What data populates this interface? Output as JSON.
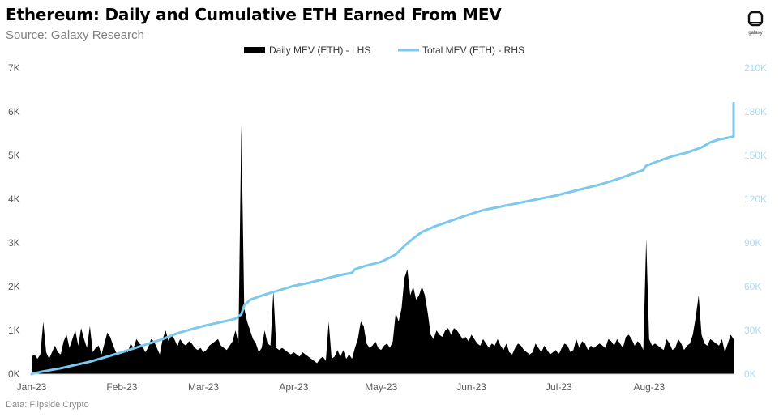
{
  "title": "Ethereum: Daily and Cumulative ETH Earned From MEV",
  "subtitle": "Source: Galaxy Research",
  "footnote": "Data: Flipside Crypto",
  "logo_text": "galaxy",
  "colors": {
    "daily": "#000000",
    "total": "#7cc8ee",
    "left_axis_text": "#595959",
    "right_axis_text": "#a9dcf5"
  },
  "chart_data": {
    "type": "area+line",
    "title": "Ethereum: Daily and Cumulative ETH Earned From MEV",
    "x_labels": [
      "Jan-23",
      "Feb-23",
      "Mar-23",
      "Apr-23",
      "May-23",
      "Jun-23",
      "Jul-23",
      "Aug-23"
    ],
    "x_label_days": [
      0,
      31,
      59,
      90,
      120,
      151,
      181,
      212
    ],
    "total_days": 241,
    "left_axis": {
      "ylim": [
        0,
        7000
      ],
      "ticks": [
        "0K",
        "1K",
        "2K",
        "3K",
        "4K",
        "5K",
        "6K",
        "7K"
      ]
    },
    "right_axis": {
      "ylim": [
        0,
        210000
      ],
      "ticks": [
        "0K",
        "30K",
        "60K",
        "90K",
        "120K",
        "150K",
        "180K",
        "210K"
      ]
    },
    "series": [
      {
        "name": "Daily MEV (ETH) - LHS",
        "type": "area",
        "axis": "left",
        "points": [
          [
            0,
            400
          ],
          [
            1,
            450
          ],
          [
            2,
            350
          ],
          [
            3,
            450
          ],
          [
            4,
            1200
          ],
          [
            5,
            500
          ],
          [
            6,
            350
          ],
          [
            7,
            500
          ],
          [
            8,
            650
          ],
          [
            9,
            500
          ],
          [
            10,
            450
          ],
          [
            11,
            750
          ],
          [
            12,
            900
          ],
          [
            13,
            600
          ],
          [
            14,
            800
          ],
          [
            15,
            1000
          ],
          [
            16,
            650
          ],
          [
            17,
            1050
          ],
          [
            18,
            800
          ],
          [
            19,
            600
          ],
          [
            20,
            1100
          ],
          [
            21,
            500
          ],
          [
            22,
            600
          ],
          [
            23,
            650
          ],
          [
            24,
            450
          ],
          [
            25,
            700
          ],
          [
            26,
            950
          ],
          [
            27,
            850
          ],
          [
            28,
            650
          ],
          [
            29,
            500
          ],
          [
            30,
            450
          ],
          [
            31,
            500
          ],
          [
            32,
            550
          ],
          [
            33,
            500
          ],
          [
            34,
            700
          ],
          [
            35,
            600
          ],
          [
            36,
            800
          ],
          [
            37,
            700
          ],
          [
            38,
            650
          ],
          [
            39,
            500
          ],
          [
            40,
            600
          ],
          [
            41,
            800
          ],
          [
            42,
            750
          ],
          [
            43,
            600
          ],
          [
            44,
            450
          ],
          [
            45,
            800
          ],
          [
            46,
            1000
          ],
          [
            47,
            750
          ],
          [
            48,
            900
          ],
          [
            49,
            800
          ],
          [
            50,
            650
          ],
          [
            51,
            800
          ],
          [
            52,
            700
          ],
          [
            53,
            650
          ],
          [
            54,
            750
          ],
          [
            55,
            700
          ],
          [
            56,
            600
          ],
          [
            57,
            550
          ],
          [
            58,
            600
          ],
          [
            59,
            500
          ],
          [
            60,
            550
          ],
          [
            61,
            650
          ],
          [
            62,
            700
          ],
          [
            63,
            750
          ],
          [
            64,
            800
          ],
          [
            65,
            650
          ],
          [
            66,
            600
          ],
          [
            67,
            550
          ],
          [
            68,
            650
          ],
          [
            69,
            750
          ],
          [
            70,
            1000
          ],
          [
            71,
            700
          ],
          [
            72,
            5700
          ],
          [
            73,
            1500
          ],
          [
            74,
            1200
          ],
          [
            75,
            1000
          ],
          [
            76,
            800
          ],
          [
            77,
            700
          ],
          [
            78,
            500
          ],
          [
            79,
            600
          ],
          [
            80,
            1000
          ],
          [
            81,
            700
          ],
          [
            82,
            650
          ],
          [
            83,
            1900
          ],
          [
            84,
            600
          ],
          [
            85,
            550
          ],
          [
            86,
            600
          ],
          [
            87,
            550
          ],
          [
            88,
            500
          ],
          [
            89,
            450
          ],
          [
            90,
            500
          ],
          [
            91,
            450
          ],
          [
            92,
            400
          ],
          [
            93,
            500
          ],
          [
            94,
            450
          ],
          [
            95,
            400
          ],
          [
            96,
            350
          ],
          [
            97,
            300
          ],
          [
            98,
            250
          ],
          [
            99,
            350
          ],
          [
            100,
            400
          ],
          [
            101,
            300
          ],
          [
            102,
            1200
          ],
          [
            103,
            350
          ],
          [
            104,
            400
          ],
          [
            105,
            550
          ],
          [
            106,
            400
          ],
          [
            107,
            550
          ],
          [
            108,
            350
          ],
          [
            109,
            450
          ],
          [
            110,
            350
          ],
          [
            111,
            600
          ],
          [
            112,
            800
          ],
          [
            113,
            1200
          ],
          [
            114,
            1100
          ],
          [
            115,
            700
          ],
          [
            116,
            600
          ],
          [
            117,
            650
          ],
          [
            118,
            750
          ],
          [
            119,
            600
          ],
          [
            120,
            550
          ],
          [
            121,
            650
          ],
          [
            122,
            700
          ],
          [
            123,
            600
          ],
          [
            124,
            750
          ],
          [
            125,
            1400
          ],
          [
            126,
            1200
          ],
          [
            127,
            1500
          ],
          [
            128,
            2200
          ],
          [
            129,
            2400
          ],
          [
            130,
            1800
          ],
          [
            131,
            2000
          ],
          [
            132,
            1700
          ],
          [
            133,
            1800
          ],
          [
            134,
            2000
          ],
          [
            135,
            1800
          ],
          [
            136,
            1400
          ],
          [
            137,
            900
          ],
          [
            138,
            800
          ],
          [
            139,
            1000
          ],
          [
            140,
            900
          ],
          [
            141,
            850
          ],
          [
            142,
            1000
          ],
          [
            143,
            1050
          ],
          [
            144,
            900
          ],
          [
            145,
            1050
          ],
          [
            146,
            1000
          ],
          [
            147,
            900
          ],
          [
            148,
            800
          ],
          [
            149,
            850
          ],
          [
            150,
            750
          ],
          [
            151,
            900
          ],
          [
            152,
            800
          ],
          [
            153,
            700
          ],
          [
            154,
            650
          ],
          [
            155,
            800
          ],
          [
            156,
            700
          ],
          [
            157,
            600
          ],
          [
            158,
            700
          ],
          [
            159,
            650
          ],
          [
            160,
            800
          ],
          [
            161,
            650
          ],
          [
            162,
            550
          ],
          [
            163,
            700
          ],
          [
            164,
            500
          ],
          [
            165,
            450
          ],
          [
            166,
            600
          ],
          [
            167,
            700
          ],
          [
            168,
            650
          ],
          [
            169,
            550
          ],
          [
            170,
            500
          ],
          [
            171,
            450
          ],
          [
            172,
            500
          ],
          [
            173,
            700
          ],
          [
            174,
            600
          ],
          [
            175,
            500
          ],
          [
            176,
            650
          ],
          [
            177,
            550
          ],
          [
            178,
            450
          ],
          [
            179,
            500
          ],
          [
            180,
            550
          ],
          [
            181,
            450
          ],
          [
            182,
            600
          ],
          [
            183,
            700
          ],
          [
            184,
            650
          ],
          [
            185,
            500
          ],
          [
            186,
            550
          ],
          [
            187,
            800
          ],
          [
            188,
            600
          ],
          [
            189,
            750
          ],
          [
            190,
            700
          ],
          [
            191,
            550
          ],
          [
            192,
            650
          ],
          [
            193,
            600
          ],
          [
            194,
            650
          ],
          [
            195,
            700
          ],
          [
            196,
            650
          ],
          [
            197,
            600
          ],
          [
            198,
            800
          ],
          [
            199,
            750
          ],
          [
            200,
            650
          ],
          [
            201,
            800
          ],
          [
            202,
            700
          ],
          [
            203,
            600
          ],
          [
            204,
            850
          ],
          [
            205,
            900
          ],
          [
            206,
            800
          ],
          [
            207,
            650
          ],
          [
            208,
            750
          ],
          [
            209,
            700
          ],
          [
            210,
            550
          ],
          [
            211,
            3100
          ],
          [
            212,
            800
          ],
          [
            213,
            650
          ],
          [
            214,
            700
          ],
          [
            215,
            650
          ],
          [
            216,
            600
          ],
          [
            217,
            550
          ],
          [
            218,
            800
          ],
          [
            219,
            700
          ],
          [
            220,
            550
          ],
          [
            221,
            600
          ],
          [
            222,
            800
          ],
          [
            223,
            700
          ],
          [
            224,
            550
          ],
          [
            225,
            650
          ],
          [
            226,
            700
          ],
          [
            227,
            900
          ],
          [
            228,
            1300
          ],
          [
            229,
            1800
          ],
          [
            230,
            900
          ],
          [
            231,
            700
          ],
          [
            232,
            650
          ],
          [
            233,
            800
          ],
          [
            234,
            750
          ],
          [
            235,
            700
          ],
          [
            236,
            650
          ],
          [
            237,
            800
          ],
          [
            238,
            500
          ],
          [
            239,
            700
          ],
          [
            240,
            900
          ],
          [
            241,
            800
          ]
        ]
      },
      {
        "name": "Total MEV (ETH) - RHS",
        "type": "line",
        "axis": "right",
        "points": [
          [
            0,
            0
          ],
          [
            3,
            1500
          ],
          [
            10,
            4000
          ],
          [
            20,
            8500
          ],
          [
            31,
            15000
          ],
          [
            45,
            24000
          ],
          [
            50,
            28000
          ],
          [
            59,
            33000
          ],
          [
            68,
            37000
          ],
          [
            70,
            38000
          ],
          [
            72,
            41000
          ],
          [
            73,
            47000
          ],
          [
            75,
            51000
          ],
          [
            80,
            54500
          ],
          [
            85,
            57500
          ],
          [
            90,
            60500
          ],
          [
            95,
            62500
          ],
          [
            100,
            65000
          ],
          [
            105,
            67500
          ],
          [
            110,
            69500
          ],
          [
            111,
            72000
          ],
          [
            115,
            74500
          ],
          [
            120,
            77000
          ],
          [
            122,
            79000
          ],
          [
            125,
            82000
          ],
          [
            128,
            88000
          ],
          [
            131,
            93000
          ],
          [
            134,
            97500
          ],
          [
            138,
            101000
          ],
          [
            143,
            104500
          ],
          [
            148,
            108000
          ],
          [
            151,
            110000
          ],
          [
            155,
            112500
          ],
          [
            160,
            114500
          ],
          [
            165,
            116500
          ],
          [
            170,
            118500
          ],
          [
            175,
            120500
          ],
          [
            180,
            122500
          ],
          [
            185,
            125000
          ],
          [
            190,
            127500
          ],
          [
            195,
            130000
          ],
          [
            200,
            133000
          ],
          [
            205,
            136500
          ],
          [
            210,
            140000
          ],
          [
            211,
            143000
          ],
          [
            215,
            146000
          ],
          [
            220,
            149500
          ],
          [
            225,
            152000
          ],
          [
            230,
            155500
          ],
          [
            233,
            159000
          ],
          [
            236,
            161000
          ],
          [
            241,
            163000
          ],
          [
            241,
            186000
          ]
        ]
      }
    ],
    "legend": "top-center"
  }
}
